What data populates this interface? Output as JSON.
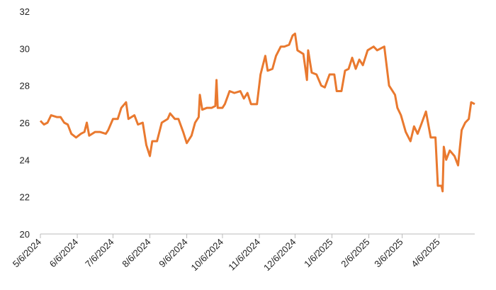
{
  "chart_data": {
    "type": "line",
    "x": [
      "5/6/2024",
      "5/9/2024",
      "5/12/2024",
      "5/15/2024",
      "5/20/2024",
      "5/23/2024",
      "5/26/2024",
      "5/29/2024",
      "6/1/2024",
      "6/5/2024",
      "6/9/2024",
      "6/12/2024",
      "6/14/2024",
      "6/16/2024",
      "6/21/2024",
      "6/25/2024",
      "6/30/2024",
      "7/2/2024",
      "7/6/2024",
      "7/10/2024",
      "7/13/2024",
      "7/17/2024",
      "7/19/2024",
      "7/24/2024",
      "7/27/2024",
      "7/31/2024",
      "8/3/2024",
      "8/6/2024",
      "8/8/2024",
      "8/12/2024",
      "8/16/2024",
      "8/21/2024",
      "8/23/2024",
      "8/27/2024",
      "8/30/2024",
      "9/3/2024",
      "9/6/2024",
      "9/10/2024",
      "9/13/2024",
      "9/16/2024",
      "9/17/2024",
      "9/19/2024",
      "9/23/2024",
      "9/27/2024",
      "9/30/2024",
      "10/1/2024",
      "10/2/2024",
      "10/6/2024",
      "10/8/2024",
      "10/12/2024",
      "10/16/2024",
      "10/21/2024",
      "10/24/2024",
      "10/27/2024",
      "10/30/2024",
      "11/4/2024",
      "11/7/2024",
      "11/11/2024",
      "11/13/2024",
      "11/17/2024",
      "11/20/2024",
      "11/24/2024",
      "11/27/2024",
      "12/1/2024",
      "12/4/2024",
      "12/6/2024",
      "12/8/2024",
      "12/13/2024",
      "12/16/2024",
      "12/17/2024",
      "12/20/2024",
      "12/24/2024",
      "12/28/2024",
      "12/31/2024",
      "1/4/2025",
      "1/8/2025",
      "1/10/2025",
      "1/14/2025",
      "1/17/2025",
      "1/20/2025",
      "1/23/2025",
      "1/26/2025",
      "1/29/2025",
      "2/1/2025",
      "2/5/2025",
      "2/10/2025",
      "2/13/2025",
      "2/19/2025",
      "2/23/2025",
      "2/28/2025",
      "3/2/2025",
      "3/5/2025",
      "3/9/2025",
      "3/13/2025",
      "3/16/2025",
      "3/19/2025",
      "3/22/2025",
      "3/26/2025",
      "3/30/2025",
      "4/3/2025",
      "4/5/2025",
      "4/8/2025",
      "4/9/2025",
      "4/10/2025",
      "4/12/2025",
      "4/15/2025",
      "4/19/2025",
      "4/22/2025",
      "4/25/2025",
      "4/28/2025",
      "5/1/2025",
      "5/3/2025",
      "5/6/2025"
    ],
    "series": [
      {
        "color": "#e9792f",
        "values": [
          26.1,
          25.9,
          26.0,
          26.4,
          26.3,
          26.3,
          26.0,
          25.9,
          25.4,
          25.2,
          25.4,
          25.5,
          26.0,
          25.3,
          25.5,
          25.5,
          25.4,
          25.6,
          26.2,
          26.2,
          26.8,
          27.1,
          26.2,
          26.4,
          25.9,
          26.0,
          24.8,
          24.2,
          25.0,
          25.0,
          26.0,
          26.2,
          26.5,
          26.2,
          26.2,
          25.5,
          24.9,
          25.3,
          26.0,
          26.3,
          27.5,
          26.7,
          26.8,
          26.8,
          26.9,
          28.3,
          26.8,
          26.8,
          27.0,
          27.7,
          27.6,
          27.7,
          27.3,
          27.6,
          27.0,
          27.0,
          28.6,
          29.6,
          28.8,
          28.9,
          29.6,
          30.1,
          30.1,
          30.2,
          30.7,
          30.8,
          29.9,
          29.7,
          28.3,
          29.9,
          28.7,
          28.6,
          28.0,
          27.9,
          28.6,
          28.6,
          27.7,
          27.7,
          28.8,
          28.9,
          29.5,
          28.9,
          29.4,
          29.1,
          29.9,
          30.1,
          29.9,
          30.1,
          28.0,
          27.5,
          26.8,
          26.4,
          25.5,
          25.0,
          25.8,
          25.4,
          25.9,
          26.6,
          25.2,
          25.2,
          22.6,
          22.6,
          22.3,
          24.7,
          24.0,
          24.5,
          24.2,
          23.7,
          25.6,
          26.0,
          26.2,
          27.1,
          27.0
        ]
      }
    ],
    "xlim": [
      "5/6/2024",
      "5/6/2025"
    ],
    "xticks": [
      "5/6/2024",
      "6/6/2024",
      "7/6/2024",
      "8/6/2024",
      "9/6/2024",
      "10/6/2024",
      "11/6/2024",
      "12/6/2024",
      "1/6/2025",
      "2/6/2025",
      "3/6/2025",
      "4/6/2025"
    ],
    "ylim": [
      20,
      32
    ],
    "yticks": [
      20,
      22,
      24,
      26,
      28,
      30,
      32
    ],
    "grid": false
  }
}
